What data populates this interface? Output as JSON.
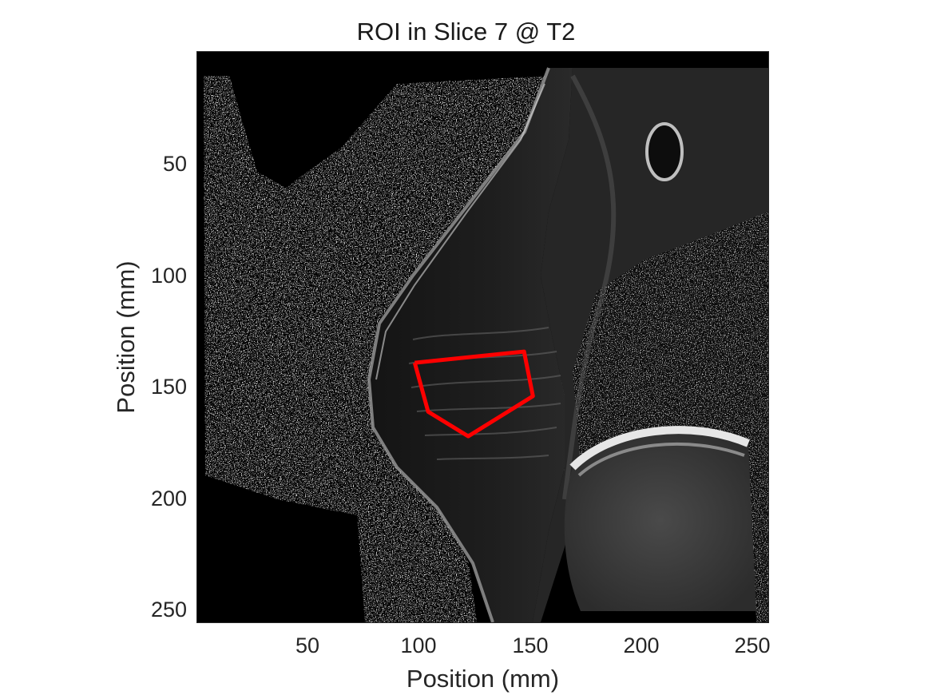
{
  "figure": {
    "title": "ROI in Slice 7 @ T2",
    "xlabel": "Position (mm)",
    "ylabel": "Position (mm)",
    "xticks": [
      "50",
      "100",
      "150",
      "200",
      "250"
    ],
    "yticks": [
      "50",
      "100",
      "150",
      "200",
      "250"
    ],
    "xlim": [
      0.5,
      256.5
    ],
    "ylim": [
      0.5,
      256.5
    ],
    "y_direction": "reverse",
    "colormap": "gray",
    "roi_color": "#ff0000",
    "roi_polygon_mm": [
      [
        98,
        140
      ],
      [
        104,
        162
      ],
      [
        122,
        173
      ],
      [
        151,
        155
      ],
      [
        147,
        135
      ],
      [
        98,
        140
      ]
    ]
  }
}
